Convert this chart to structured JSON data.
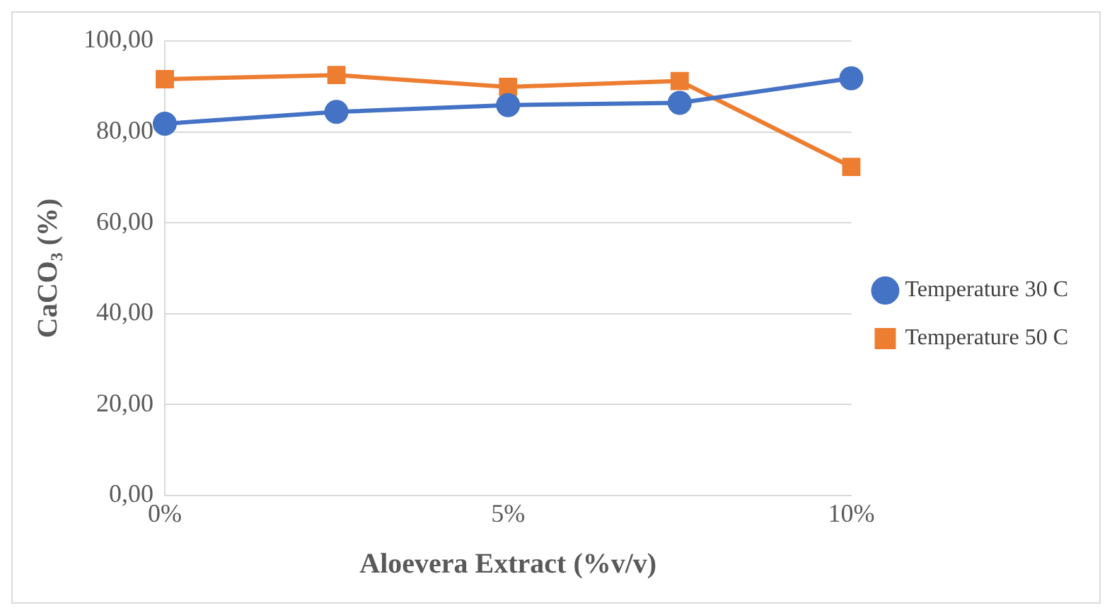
{
  "chart_data": {
    "type": "line",
    "xlabel": "Aloevera Extract (%v/v)",
    "ylabel": "CaCO₃ (%)",
    "x": [
      0,
      2.5,
      5,
      7.5,
      10
    ],
    "series": [
      {
        "name": "Temperature 30 C",
        "color": "#4472c4",
        "marker": "circle",
        "values": [
          81.8,
          84.4,
          85.9,
          86.4,
          91.8
        ]
      },
      {
        "name": "Temperature 50 C",
        "color": "#ed7d31",
        "marker": "square",
        "values": [
          91.6,
          92.5,
          89.9,
          91.2,
          72.3
        ]
      }
    ],
    "xlim": [
      0,
      10
    ],
    "xticks": [
      {
        "value": 0,
        "label": "0%"
      },
      {
        "value": 5,
        "label": "5%"
      },
      {
        "value": 10,
        "label": "10%"
      }
    ],
    "ylim": [
      0,
      100
    ],
    "yticks": [
      {
        "value": 0,
        "label": "0,00"
      },
      {
        "value": 20,
        "label": "20,00"
      },
      {
        "value": 40,
        "label": "40,00"
      },
      {
        "value": 60,
        "label": "60,00"
      },
      {
        "value": 80,
        "label": "80,00"
      },
      {
        "value": 100,
        "label": "100,00"
      }
    ],
    "grid": "y",
    "legend": "right",
    "line_style": "solid"
  }
}
